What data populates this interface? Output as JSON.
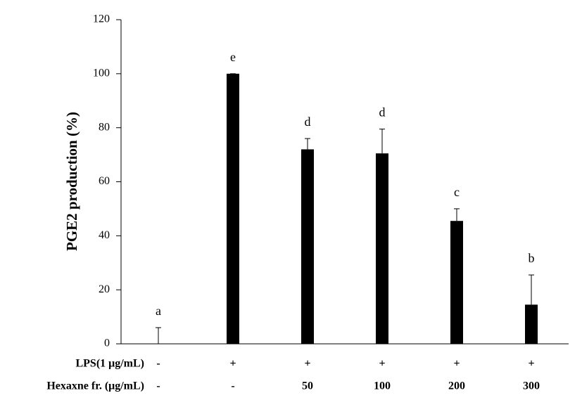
{
  "chart_data": {
    "type": "bar",
    "y_label": "PGE2  production (%)",
    "values": [
      0,
      100,
      72,
      70.5,
      45.5,
      14.5
    ],
    "errors": [
      6,
      0,
      4,
      9,
      4.5,
      11
    ],
    "sig_labels": [
      "a",
      "e",
      "d",
      "d",
      "c",
      "b"
    ],
    "condition_rows": [
      {
        "label": "LPS(1 μg/mL)",
        "values": [
          "-",
          "+",
          "+",
          "+",
          "+",
          "+"
        ]
      },
      {
        "label": "Hexaxne  fr. (μg/mL)",
        "values": [
          "-",
          "-",
          "50",
          "100",
          "200",
          "300"
        ]
      }
    ],
    "color": "#000000",
    "ylim": [
      0,
      120
    ],
    "yticks": [
      0,
      20,
      40,
      60,
      80,
      100,
      120
    ],
    "grid": false
  }
}
